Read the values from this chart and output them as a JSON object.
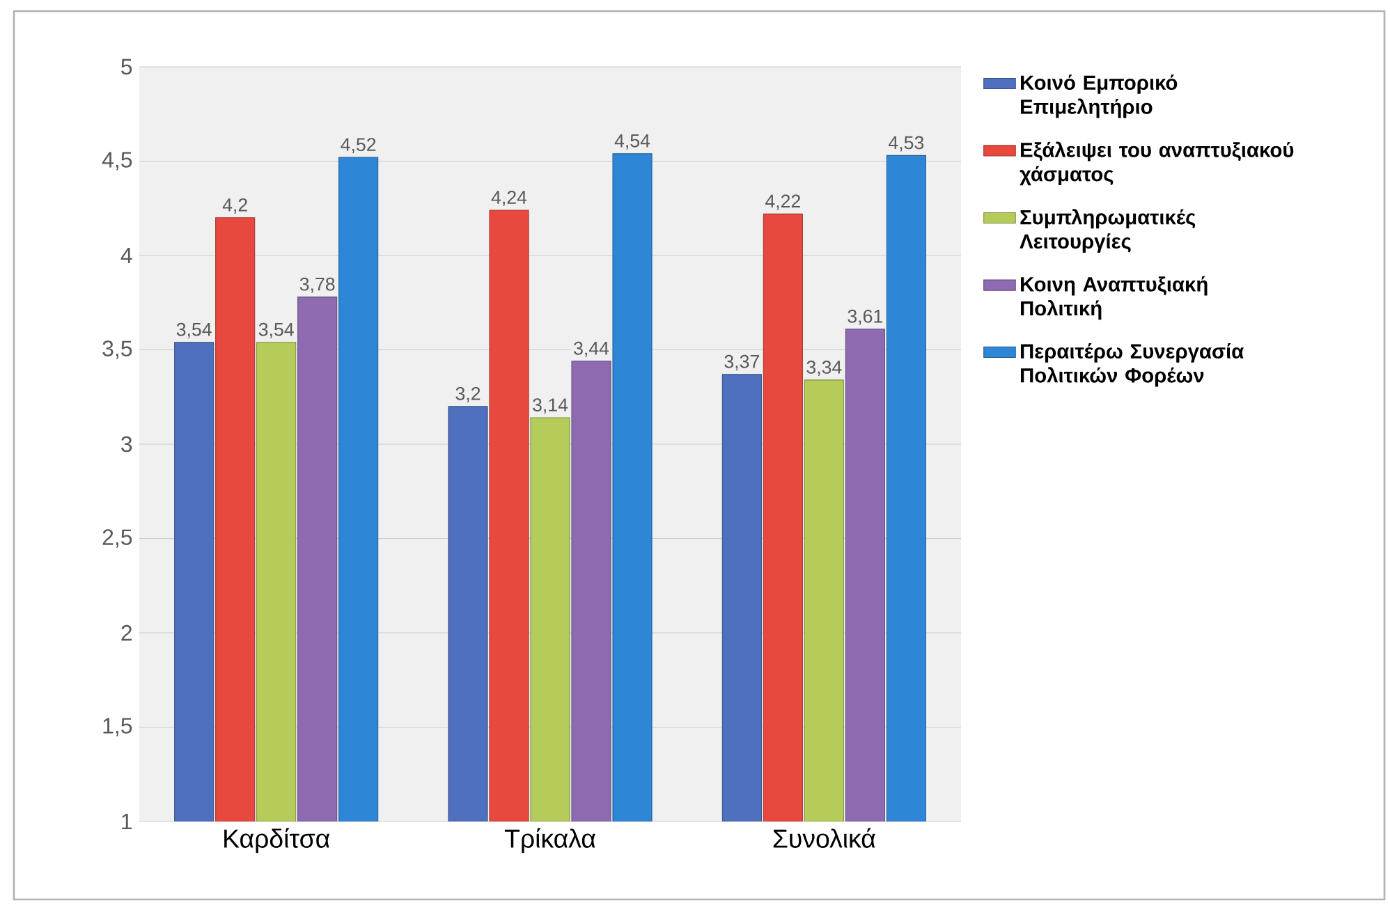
{
  "chart_data": {
    "type": "bar",
    "categories": [
      "Καρδίτσα",
      "Τρίκαλα",
      "Συνολικά"
    ],
    "series": [
      {
        "name": "Κοινό Εμπορικό Επιμελητήριο",
        "color": "#4f6fbf",
        "values": [
          3.54,
          3.2,
          3.37
        ],
        "value_labels": [
          "3,54",
          "3,2",
          "3,37"
        ]
      },
      {
        "name": "Εξάλειψει του αναπτυξιακού χάσματος",
        "color": "#e8493e",
        "values": [
          4.2,
          4.24,
          4.22
        ],
        "value_labels": [
          "4,2",
          "4,24",
          "4,22"
        ]
      },
      {
        "name": "Συμπληρωματικές Λειτουργίες",
        "color": "#b5cc5a",
        "values": [
          3.54,
          3.14,
          3.34
        ],
        "value_labels": [
          "3,54",
          "3,14",
          "3,34"
        ]
      },
      {
        "name": "Κοινη Αναπτυξιακή Πολιτική",
        "color": "#8e6bb1",
        "values": [
          3.78,
          3.44,
          3.61
        ],
        "value_labels": [
          "3,78",
          "3,44",
          "3,61"
        ]
      },
      {
        "name": "Περαιτέρω Συνεργασία Πολιτικών Φορέων",
        "color": "#2e86d6",
        "values": [
          4.52,
          4.54,
          4.53
        ],
        "value_labels": [
          "4,52",
          "4,54",
          "4,53"
        ]
      }
    ],
    "ylim": [
      1,
      5
    ],
    "yticks": [
      1,
      {
        "value": 1.5,
        "label": "1,5"
      },
      2,
      {
        "value": 2.5,
        "label": "2,5"
      },
      3,
      {
        "value": 3.5,
        "label": "3,5"
      },
      4,
      {
        "value": 4.5,
        "label": "4,5"
      },
      5
    ],
    "grid": "y",
    "legend": "right"
  }
}
